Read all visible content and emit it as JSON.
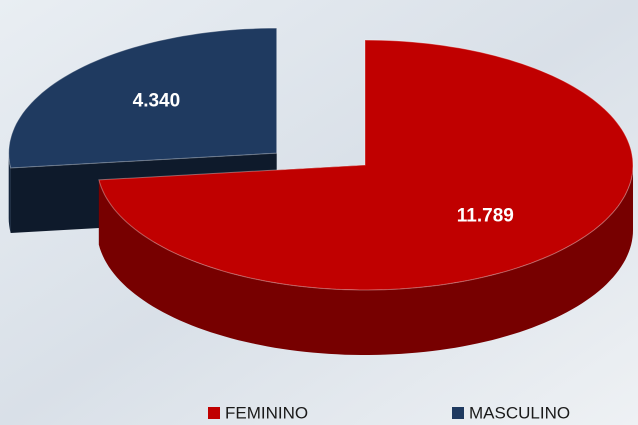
{
  "chart_data": {
    "type": "pie3d",
    "categories": [
      "FEMININO",
      "MASCULINO"
    ],
    "values": [
      11789,
      4340
    ],
    "value_labels": [
      "11.789",
      "4.340"
    ],
    "colors": [
      "#c00000",
      "#1f3a60"
    ],
    "legend": "bottom"
  }
}
